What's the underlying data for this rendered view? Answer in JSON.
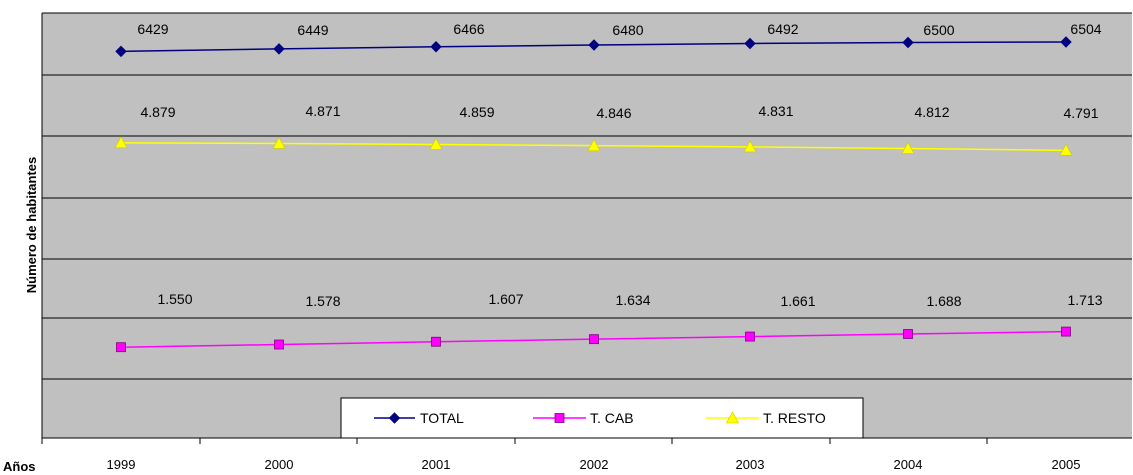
{
  "chart_data": {
    "type": "line",
    "categories": [
      "1999",
      "2000",
      "2001",
      "2002",
      "2003",
      "2004",
      "2005"
    ],
    "ylabel": "Número de habitantes",
    "xlabel": "Años",
    "grid": true,
    "legend_position": "bottom-center",
    "series": [
      {
        "name": "TOTAL",
        "values": [
          6429,
          6449,
          6466,
          6480,
          6492,
          6500,
          6504
        ],
        "labels": [
          "6429",
          "6449",
          "6466",
          "6480",
          "6492",
          "6500",
          "6504"
        ],
        "color": "#000080",
        "marker": "diamond"
      },
      {
        "name": "T. CAB",
        "values": [
          1550,
          1578,
          1607,
          1634,
          1661,
          1688,
          1713
        ],
        "labels": [
          "1.550",
          "1.578",
          "1.607",
          "1.634",
          "1.661",
          "1.688",
          "1.713"
        ],
        "color": "#ff00ff",
        "marker": "square"
      },
      {
        "name": "T. RESTO",
        "values": [
          4879,
          4871,
          4859,
          4846,
          4831,
          4812,
          4791
        ],
        "labels": [
          "4.879",
          "4.871",
          "4.859",
          "4.846",
          "4.831",
          "4.812",
          "4.791"
        ],
        "color": "#ffff00",
        "marker": "triangle"
      }
    ]
  }
}
